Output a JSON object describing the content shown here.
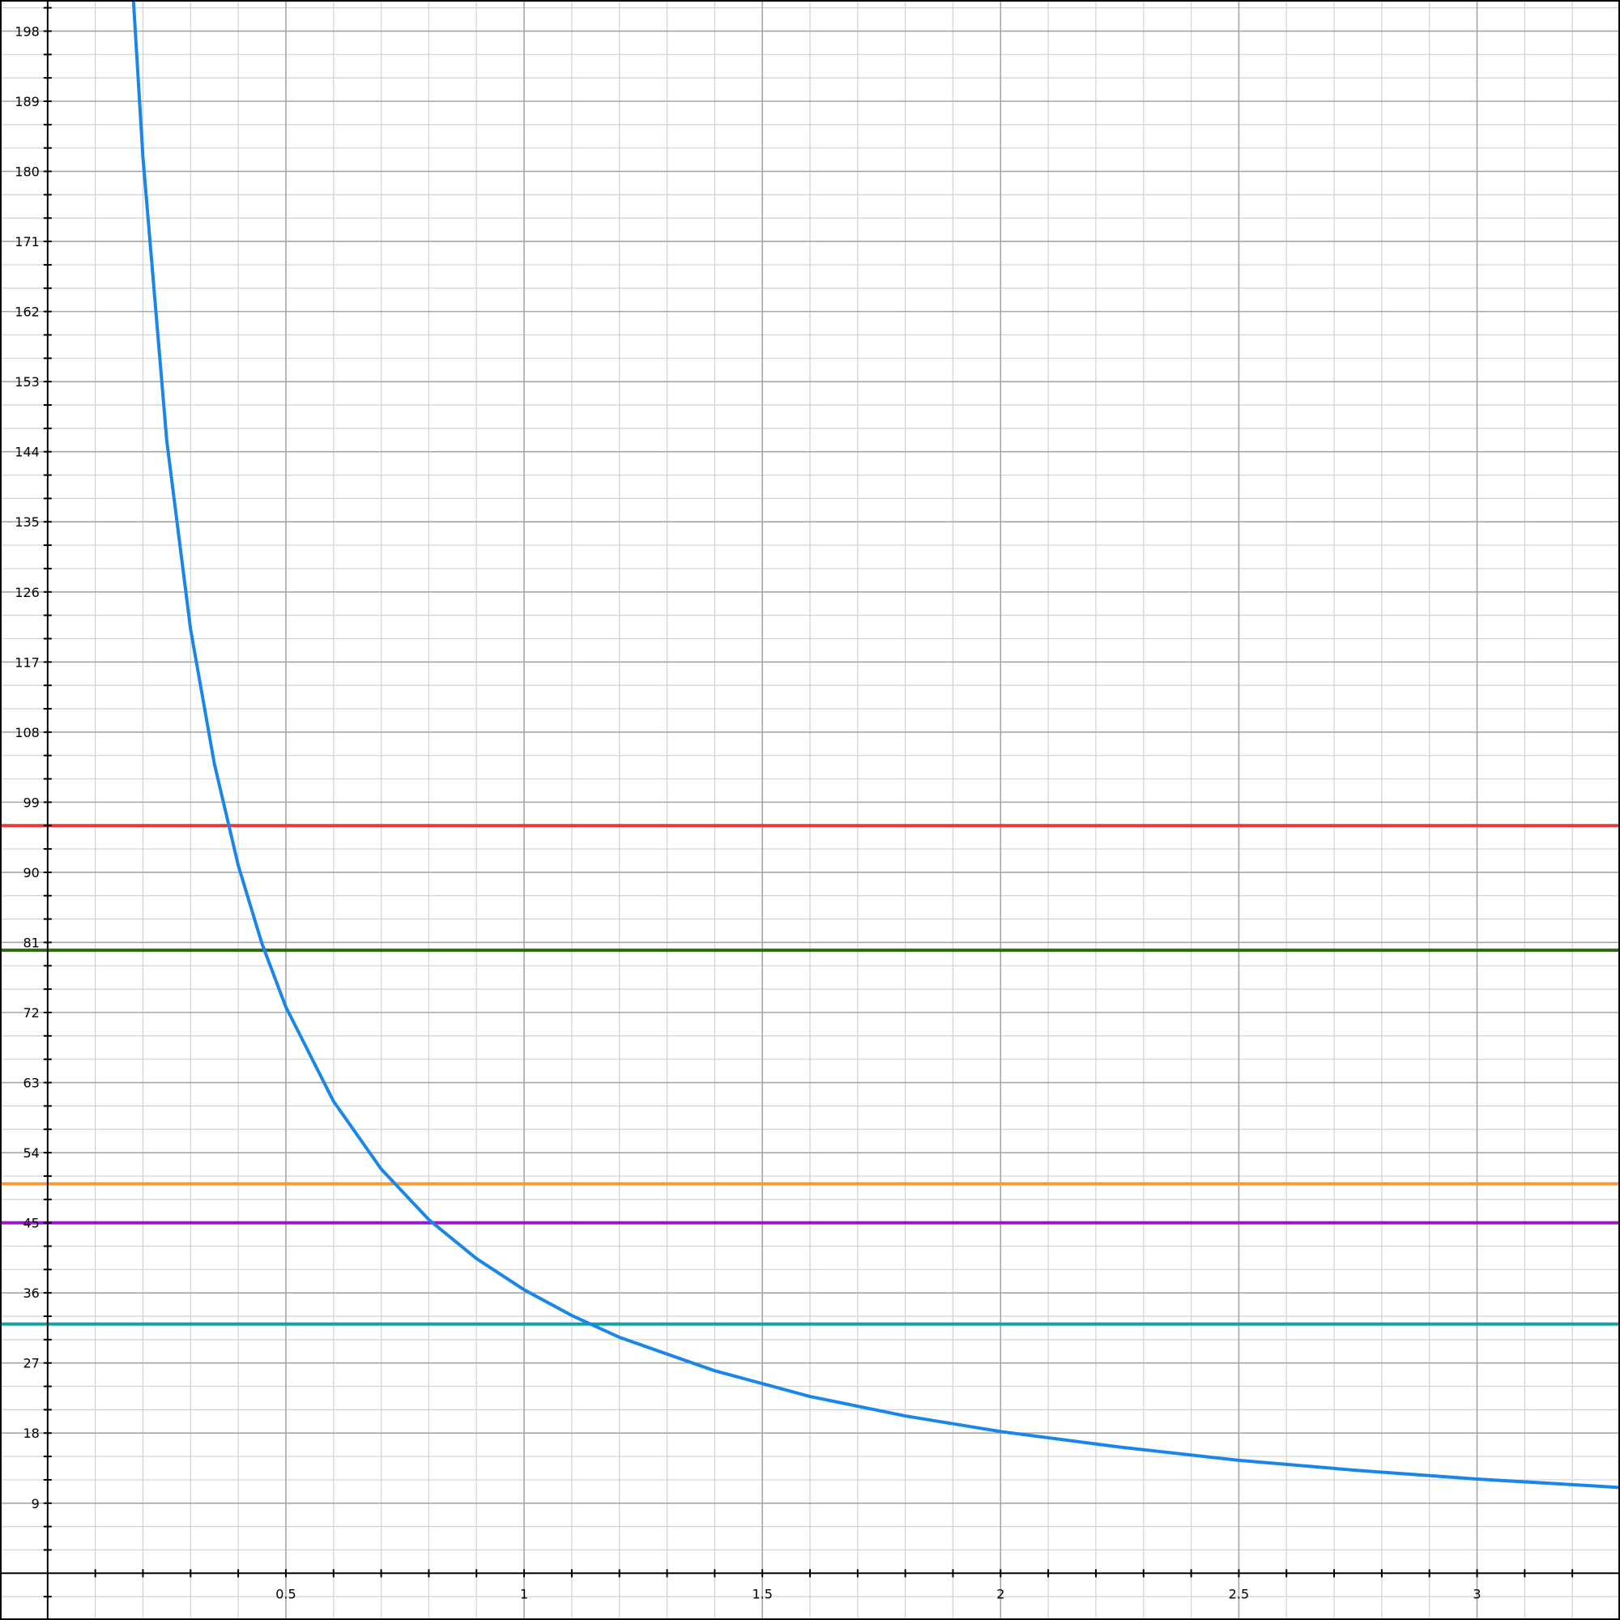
{
  "chart_data": {
    "type": "line",
    "title": "",
    "xlabel": "",
    "ylabel": "",
    "xlim": [
      -0.1,
      3.3
    ],
    "ylim": [
      -6,
      202
    ],
    "grid": true,
    "x_ticks": [
      {
        "value": 0.5,
        "label": "0.5"
      },
      {
        "value": 1,
        "label": "1"
      },
      {
        "value": 1.5,
        "label": "1.5"
      },
      {
        "value": 2,
        "label": "2"
      },
      {
        "value": 2.5,
        "label": "2.5"
      },
      {
        "value": 3,
        "label": "3"
      }
    ],
    "y_ticks": [
      {
        "value": 9,
        "label": "9"
      },
      {
        "value": 18,
        "label": "18"
      },
      {
        "value": 27,
        "label": "27"
      },
      {
        "value": 36,
        "label": "36"
      },
      {
        "value": 45,
        "label": "45"
      },
      {
        "value": 54,
        "label": "54"
      },
      {
        "value": 63,
        "label": "63"
      },
      {
        "value": 72,
        "label": "72"
      },
      {
        "value": 81,
        "label": "81"
      },
      {
        "value": 90,
        "label": "90"
      },
      {
        "value": 99,
        "label": "99"
      },
      {
        "value": 108,
        "label": "108"
      },
      {
        "value": 117,
        "label": "117"
      },
      {
        "value": 126,
        "label": "126"
      },
      {
        "value": 135,
        "label": "135"
      },
      {
        "value": 144,
        "label": "144"
      },
      {
        "value": 153,
        "label": "153"
      },
      {
        "value": 162,
        "label": "162"
      },
      {
        "value": 171,
        "label": "171"
      },
      {
        "value": 180,
        "label": "180"
      },
      {
        "value": 189,
        "label": "189"
      },
      {
        "value": 198,
        "label": "198"
      }
    ],
    "curve": {
      "color": "#1a86e8",
      "x": [
        0.18,
        0.2,
        0.25,
        0.3,
        0.35,
        0.4,
        0.45,
        0.5,
        0.6,
        0.7,
        0.8,
        0.9,
        1.0,
        1.1,
        1.2,
        1.4,
        1.6,
        1.8,
        2.0,
        2.25,
        2.5,
        2.75,
        3.0,
        3.25,
        3.3
      ],
      "y": [
        202.0,
        181.8,
        145.4,
        121.2,
        103.9,
        90.9,
        80.8,
        72.7,
        60.6,
        51.9,
        45.4,
        40.4,
        36.4,
        33.1,
        30.3,
        26.0,
        22.7,
        20.2,
        18.2,
        16.2,
        14.5,
        13.2,
        12.1,
        11.2,
        11.0
      ]
    },
    "hlines": [
      {
        "y": 96,
        "color": "#e8393b"
      },
      {
        "y": 80,
        "color": "#2d6a0f"
      },
      {
        "y": 50,
        "color": "#f59a3a"
      },
      {
        "y": 45,
        "color": "#9a15c3"
      },
      {
        "y": 32,
        "color": "#16a0a0"
      }
    ]
  }
}
